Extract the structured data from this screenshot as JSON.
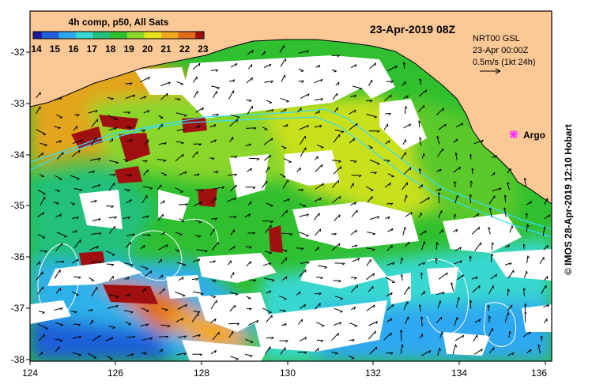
{
  "title": {
    "date_label": "23-Apr-2019 08Z",
    "composite_label": "4h comp, p50, All Sats"
  },
  "colorbar": {
    "ticks": [
      "14",
      "15",
      "16",
      "17",
      "18",
      "19",
      "20",
      "21",
      "22",
      "23"
    ],
    "colors": [
      "#1a1a9e",
      "#1f5fd8",
      "#2fa8f0",
      "#38d7d0",
      "#22c07a",
      "#2fbf2f",
      "#8ad62a",
      "#e3e41a",
      "#f0a820",
      "#e06a18",
      "#a01010"
    ]
  },
  "current_legend": {
    "line1": "NRT00 GSL",
    "line2": "23-Apr 00:00Z",
    "line3": "0.5m/s (1kt 24h)"
  },
  "marker": {
    "label": "Argo",
    "color": "#ff33ff",
    "icon": "asterisk-marker"
  },
  "axes": {
    "x_ticks": [
      "124",
      "126",
      "128",
      "130",
      "132",
      "134",
      "136"
    ],
    "y_ticks": [
      "-32",
      "-33",
      "-34",
      "-35",
      "-36",
      "-37",
      "-38"
    ]
  },
  "credit": "© IMOS 28-Apr-2019 12:10 Hobart",
  "colors": {
    "land": "#fbc896",
    "cloud": "#ffffff",
    "isobath": "#33ddff",
    "contour": "#ffffff"
  }
}
